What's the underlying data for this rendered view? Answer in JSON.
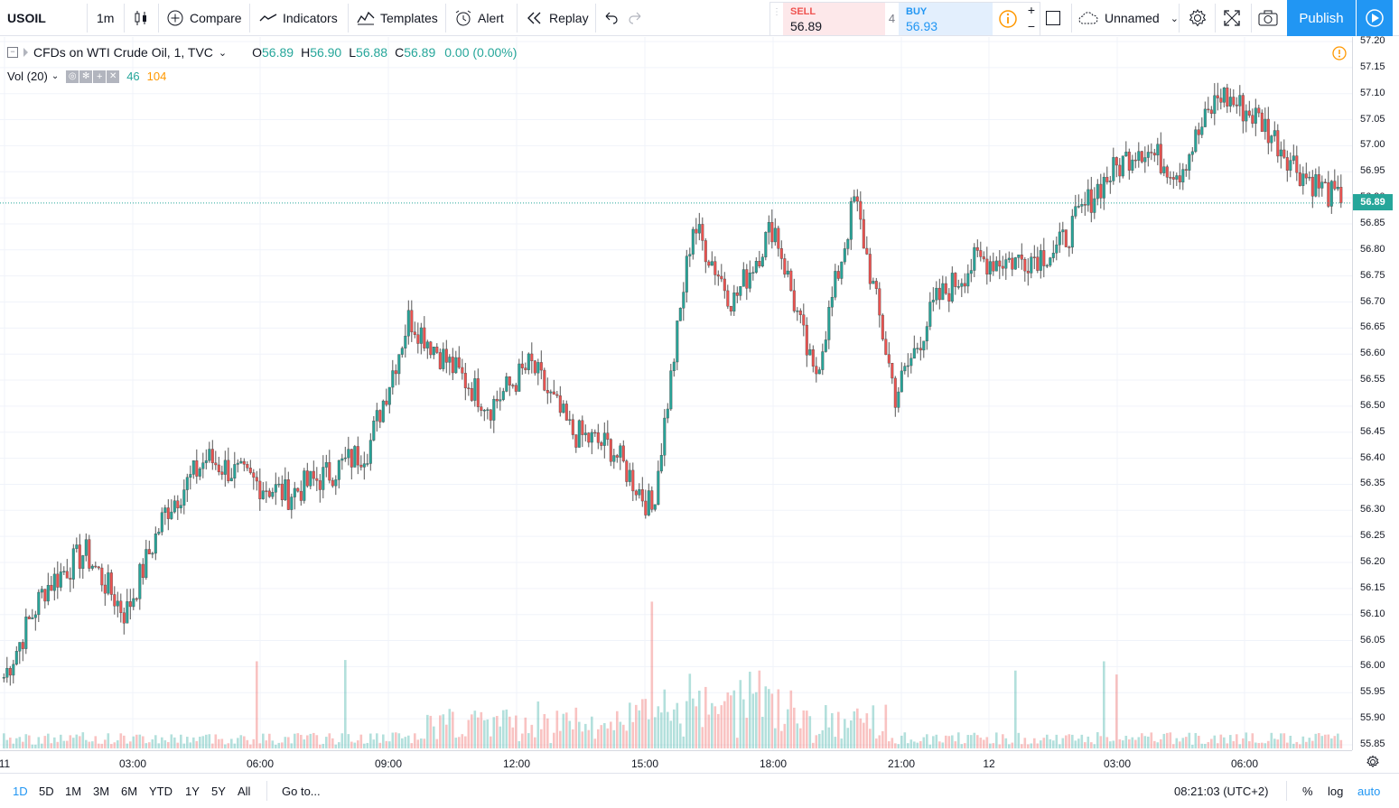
{
  "toolbar": {
    "symbol": "USOIL",
    "interval": "1m",
    "compare": "Compare",
    "indicators": "Indicators",
    "templates": "Templates",
    "alert": "Alert",
    "replay": "Replay",
    "sell_label": "SELL",
    "sell_price": "56.89",
    "spread": "4",
    "buy_label": "BUY",
    "buy_price": "56.93",
    "layout_name": "Unnamed",
    "publish": "Publish"
  },
  "legend": {
    "title": "CFDs on WTI Crude Oil, 1, TVC",
    "o_label": "O",
    "o": "56.89",
    "h_label": "H",
    "h": "56.90",
    "l_label": "L",
    "l": "56.88",
    "c_label": "C",
    "c": "56.89",
    "change": "0.00 (0.00%)",
    "vol_label": "Vol (20)",
    "vol_a": "46",
    "vol_b": "104"
  },
  "price_axis": {
    "labels": [
      "57.20",
      "57.15",
      "57.10",
      "57.05",
      "57.00",
      "56.95",
      "56.90",
      "56.85",
      "56.80",
      "56.75",
      "56.70",
      "56.65",
      "56.60",
      "56.55",
      "56.50",
      "56.45",
      "56.40",
      "56.35",
      "56.30",
      "56.25",
      "56.20",
      "56.15",
      "56.10",
      "56.05",
      "56.00",
      "55.95",
      "55.90",
      "55.85"
    ],
    "current": "56.89"
  },
  "time_axis": {
    "labels": [
      "11",
      "03:00",
      "06:00",
      "09:00",
      "12:00",
      "15:00",
      "18:00",
      "21:00",
      "12",
      "03:00",
      "06:00"
    ]
  },
  "bottom_bar": {
    "ranges": [
      "1D",
      "5D",
      "1M",
      "3M",
      "6M",
      "YTD",
      "1Y",
      "5Y",
      "All"
    ],
    "goto": "Go to...",
    "clock": "08:21:03 (UTC+2)",
    "percent": "%",
    "log": "log",
    "auto": "auto"
  },
  "colors": {
    "up": "#26a69a",
    "down": "#ef5350",
    "accent": "#2196f3",
    "price_line": "#26a69a"
  },
  "chart_data": {
    "type": "candlestick",
    "ylim": [
      55.85,
      57.2
    ],
    "x": [
      "11",
      "03:00",
      "06:00",
      "09:00",
      "12:00",
      "15:00",
      "18:00",
      "21:00",
      "12",
      "03:00",
      "06:00"
    ],
    "close_trend": [
      [
        55.98,
        56.15,
        56.22,
        56.1,
        56.3,
        56.4,
        56.36,
        56.33,
        56.37,
        56.42,
        56.67
      ],
      [
        56.58,
        56.5,
        56.58,
        56.45,
        56.42,
        56.3,
        56.85,
        56.7,
        56.85,
        56.55,
        56.9
      ],
      [
        56.52,
        56.7,
        56.78,
        56.78,
        56.8,
        56.92,
        57.0,
        56.95,
        57.1,
        57.05,
        56.95,
        56.89
      ]
    ]
  }
}
